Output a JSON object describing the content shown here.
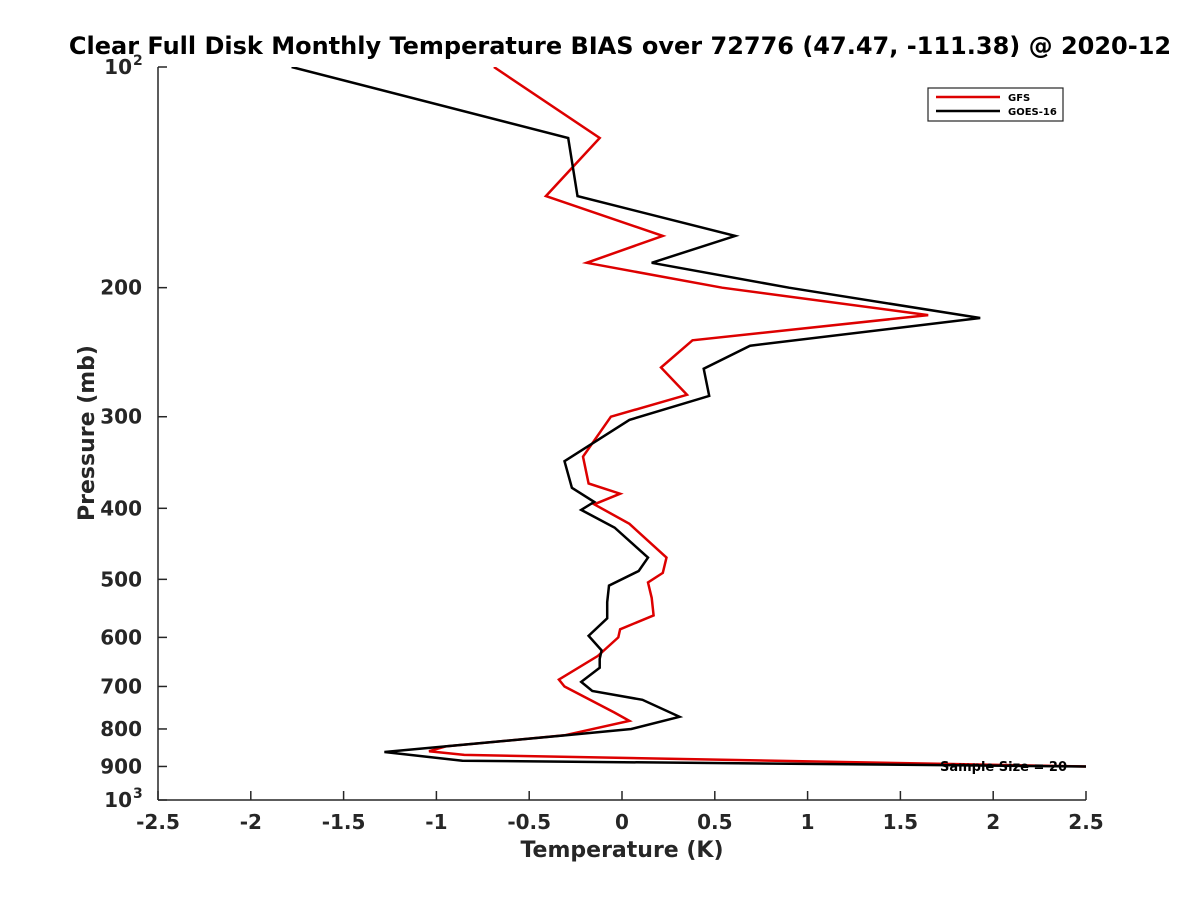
{
  "chart_data": {
    "type": "line",
    "title": "Clear Full Disk Monthly Temperature BIAS over 72776 (47.47, -111.38) @ 2020-12",
    "xlabel": "Temperature (K)",
    "ylabel": "Pressure (mb)",
    "xlim": [
      -2.5,
      2.5
    ],
    "ylim": [
      100,
      1000
    ],
    "y_scale": "log",
    "y_reversed": true,
    "grid": false,
    "legend_position": "top-right",
    "x_ticks": [
      -2.5,
      -2,
      -1.5,
      -1,
      -0.5,
      0,
      0.5,
      1,
      1.5,
      2,
      2.5
    ],
    "x_tick_labels": [
      "-2.5",
      "-2",
      "-1.5",
      "-1",
      "-0.5",
      "0",
      "0.5",
      "1",
      "1.5",
      "2",
      "2.5"
    ],
    "y_ticks": [
      100,
      200,
      300,
      400,
      500,
      600,
      700,
      800,
      900,
      1000
    ],
    "y_tick_labels": [
      {
        "base": "10",
        "exp": "2"
      },
      {
        "base": "200",
        "exp": ""
      },
      {
        "base": "300",
        "exp": ""
      },
      {
        "base": "400",
        "exp": ""
      },
      {
        "base": "500",
        "exp": ""
      },
      {
        "base": "600",
        "exp": ""
      },
      {
        "base": "700",
        "exp": ""
      },
      {
        "base": "800",
        "exp": ""
      },
      {
        "base": "900",
        "exp": ""
      },
      {
        "base": "10",
        "exp": "3"
      }
    ],
    "annotation": "Sample Size = 20",
    "series": [
      {
        "name": "GFS",
        "color": "#dd0000",
        "points": [
          [
            -0.69,
            100
          ],
          [
            -0.12,
            125
          ],
          [
            -0.41,
            150
          ],
          [
            0.22,
            170
          ],
          [
            -0.19,
            185
          ],
          [
            0.54,
            200
          ],
          [
            1.65,
            218
          ],
          [
            0.38,
            236
          ],
          [
            0.21,
            257
          ],
          [
            0.35,
            280
          ],
          [
            -0.06,
            300
          ],
          [
            -0.21,
            340
          ],
          [
            -0.18,
            370
          ],
          [
            -0.01,
            382
          ],
          [
            -0.15,
            395
          ],
          [
            0.04,
            420
          ],
          [
            0.24,
            467
          ],
          [
            0.22,
            490
          ],
          [
            0.14,
            505
          ],
          [
            0.16,
            530
          ],
          [
            0.17,
            560
          ],
          [
            -0.01,
            585
          ],
          [
            -0.02,
            600
          ],
          [
            -0.13,
            636
          ],
          [
            -0.34,
            685
          ],
          [
            -0.31,
            700
          ],
          [
            -0.04,
            760
          ],
          [
            0.04,
            780
          ],
          [
            -0.31,
            816
          ],
          [
            -0.95,
            845
          ],
          [
            -1.04,
            858
          ],
          [
            -0.85,
            868
          ],
          [
            2.5,
            900
          ]
        ]
      },
      {
        "name": "GOES-16",
        "color": "#000000",
        "points": [
          [
            -1.78,
            100
          ],
          [
            -0.29,
            125
          ],
          [
            -0.24,
            150
          ],
          [
            0.61,
            170
          ],
          [
            0.16,
            185
          ],
          [
            0.9,
            200
          ],
          [
            1.93,
            220
          ],
          [
            0.69,
            240
          ],
          [
            0.44,
            258
          ],
          [
            0.47,
            281
          ],
          [
            0.04,
            303
          ],
          [
            -0.31,
            345
          ],
          [
            -0.27,
            375
          ],
          [
            -0.15,
            392
          ],
          [
            -0.22,
            402
          ],
          [
            -0.04,
            425
          ],
          [
            0.14,
            467
          ],
          [
            0.09,
            487
          ],
          [
            -0.07,
            510
          ],
          [
            -0.08,
            537
          ],
          [
            -0.08,
            565
          ],
          [
            -0.18,
            597
          ],
          [
            -0.11,
            625
          ],
          [
            -0.12,
            642
          ],
          [
            -0.12,
            660
          ],
          [
            -0.22,
            690
          ],
          [
            -0.16,
            710
          ],
          [
            0.11,
            730
          ],
          [
            0.31,
            770
          ],
          [
            0.05,
            800
          ],
          [
            -0.28,
            815
          ],
          [
            -1.28,
            860
          ],
          [
            -0.86,
            884
          ],
          [
            2.5,
            900
          ]
        ]
      }
    ]
  }
}
